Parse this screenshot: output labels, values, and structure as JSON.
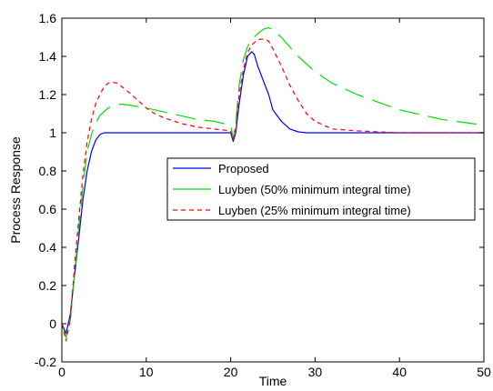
{
  "chart_data": {
    "type": "line",
    "title": "",
    "xlabel": "Time",
    "ylabel": "Process Response",
    "xlim": [
      0,
      50
    ],
    "ylim": [
      -0.2,
      1.6
    ],
    "xticks": [
      0,
      10,
      20,
      30,
      40,
      50
    ],
    "yticks": [
      -0.2,
      0,
      0.2,
      0.4,
      0.6,
      0.8,
      1,
      1.2,
      1.4,
      1.6
    ],
    "grid": false,
    "legend_position": "center-right",
    "series": [
      {
        "name": "Proposed",
        "color": "#0000ff",
        "style": "solid",
        "x": [
          0,
          0.5,
          1,
          1.5,
          2,
          2.5,
          3,
          3.5,
          4,
          4.5,
          5,
          5.5,
          6,
          7,
          8,
          9,
          10,
          12,
          14,
          16,
          18,
          19,
          20,
          20.3,
          20.6,
          21,
          21.5,
          22,
          22.5,
          22.8,
          23.2,
          23.8,
          24.5,
          25,
          26,
          27,
          28,
          29,
          30,
          35,
          40,
          45,
          50
        ],
        "y": [
          0,
          -0.05,
          0.05,
          0.25,
          0.45,
          0.65,
          0.8,
          0.9,
          0.96,
          0.99,
          1.0,
          1.0,
          1.0,
          1.0,
          1.0,
          1.0,
          1.0,
          1.0,
          1.0,
          1.0,
          1.0,
          1.0,
          1.0,
          0.955,
          1.0,
          1.15,
          1.3,
          1.4,
          1.425,
          1.41,
          1.35,
          1.28,
          1.2,
          1.12,
          1.06,
          1.02,
          1.005,
          1.0,
          1.0,
          1.0,
          1.0,
          1.0,
          1.0
        ]
      },
      {
        "name": "Luyben (50% minimum integral time)",
        "color": "#00dd00",
        "style": "dashed",
        "x": [
          0,
          0.5,
          1,
          1.5,
          2,
          2.5,
          3,
          3.5,
          4,
          4.5,
          5,
          5.5,
          6,
          7,
          8,
          10,
          12,
          14,
          16,
          18,
          20,
          20.3,
          20.6,
          21,
          21.5,
          22,
          22.5,
          23,
          23.5,
          24,
          24.5,
          25,
          26,
          27,
          28,
          30,
          32,
          35,
          40,
          45,
          50
        ],
        "y": [
          0,
          -0.07,
          0.02,
          0.25,
          0.5,
          0.72,
          0.9,
          0.99,
          1.05,
          1.09,
          1.11,
          1.13,
          1.14,
          1.15,
          1.145,
          1.13,
          1.11,
          1.09,
          1.07,
          1.06,
          1.04,
          0.97,
          1.05,
          1.25,
          1.38,
          1.45,
          1.49,
          1.51,
          1.53,
          1.545,
          1.55,
          1.54,
          1.5,
          1.45,
          1.4,
          1.32,
          1.26,
          1.2,
          1.12,
          1.07,
          1.04
        ]
      },
      {
        "name": "Luyben (25% minimum integral time)",
        "color": "#ff0000",
        "style": "dotted",
        "x": [
          0,
          0.5,
          1,
          1.5,
          2,
          2.5,
          3,
          3.5,
          4,
          4.5,
          5,
          5.5,
          6,
          6.5,
          7,
          8,
          9,
          10,
          11,
          12,
          14,
          16,
          18,
          20,
          20.3,
          20.6,
          21,
          21.5,
          22,
          22.5,
          23,
          23.5,
          24,
          24.5,
          25,
          26,
          27,
          28,
          29,
          30,
          32,
          35,
          40,
          45,
          50
        ],
        "y": [
          0,
          -0.09,
          0.02,
          0.3,
          0.55,
          0.78,
          0.95,
          1.07,
          1.15,
          1.2,
          1.24,
          1.26,
          1.265,
          1.26,
          1.245,
          1.21,
          1.17,
          1.13,
          1.1,
          1.08,
          1.05,
          1.03,
          1.02,
          1.01,
          0.965,
          1.02,
          1.2,
          1.33,
          1.42,
          1.46,
          1.48,
          1.49,
          1.49,
          1.48,
          1.44,
          1.35,
          1.25,
          1.17,
          1.1,
          1.06,
          1.02,
          1.01,
          1.0,
          1.0,
          1.0
        ]
      }
    ]
  }
}
